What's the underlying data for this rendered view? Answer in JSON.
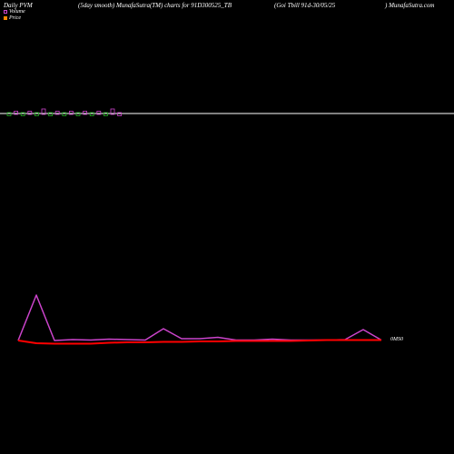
{
  "header": {
    "left": "Daily PVM",
    "mid": "(5day smooth) MunafaSutra(TM) charts for 91D300525_TB",
    "right_a": "(Goi  Tbill 91d-30/05/25",
    "right_b": ") MunafaSutra.com"
  },
  "legend": {
    "volume_label": "Volume",
    "price_label": "Price"
  },
  "colors": {
    "background": "#000000",
    "volume_bar_pos": "#22aa22",
    "volume_bar_neg": "#cc44cc",
    "price_line": "#ff0000",
    "volume_line": "#cc44cc",
    "baseline": "#ffffff"
  },
  "chart_data": {
    "type": "line",
    "axis_label": "0MS0",
    "volume_bars": {
      "values": [
        1,
        -1,
        1,
        -1,
        1,
        -2,
        1,
        -1,
        1,
        -1,
        1,
        -1,
        1,
        -1,
        1,
        -2,
        1
      ],
      "colors": [
        "pos",
        "neg",
        "pos",
        "neg",
        "pos",
        "neg",
        "pos",
        "neg",
        "pos",
        "neg",
        "pos",
        "neg",
        "pos",
        "neg",
        "pos",
        "neg",
        "neg"
      ]
    },
    "series": [
      {
        "key": "volume",
        "values": [
          0.0,
          5.0,
          0.0,
          0.1,
          0.05,
          0.15,
          0.1,
          0.05,
          1.3,
          0.2,
          0.2,
          0.35,
          0.05,
          0.05,
          0.15,
          0.05,
          0.05,
          0.05,
          0.1,
          1.2,
          0.05
        ]
      },
      {
        "key": "price",
        "values": [
          0.0,
          -0.3,
          -0.35,
          -0.35,
          -0.35,
          -0.25,
          -0.2,
          -0.2,
          -0.15,
          -0.15,
          -0.1,
          -0.1,
          -0.05,
          -0.05,
          -0.05,
          -0.05,
          0.0,
          0.05,
          0.05,
          0.05,
          0.05
        ]
      }
    ]
  }
}
